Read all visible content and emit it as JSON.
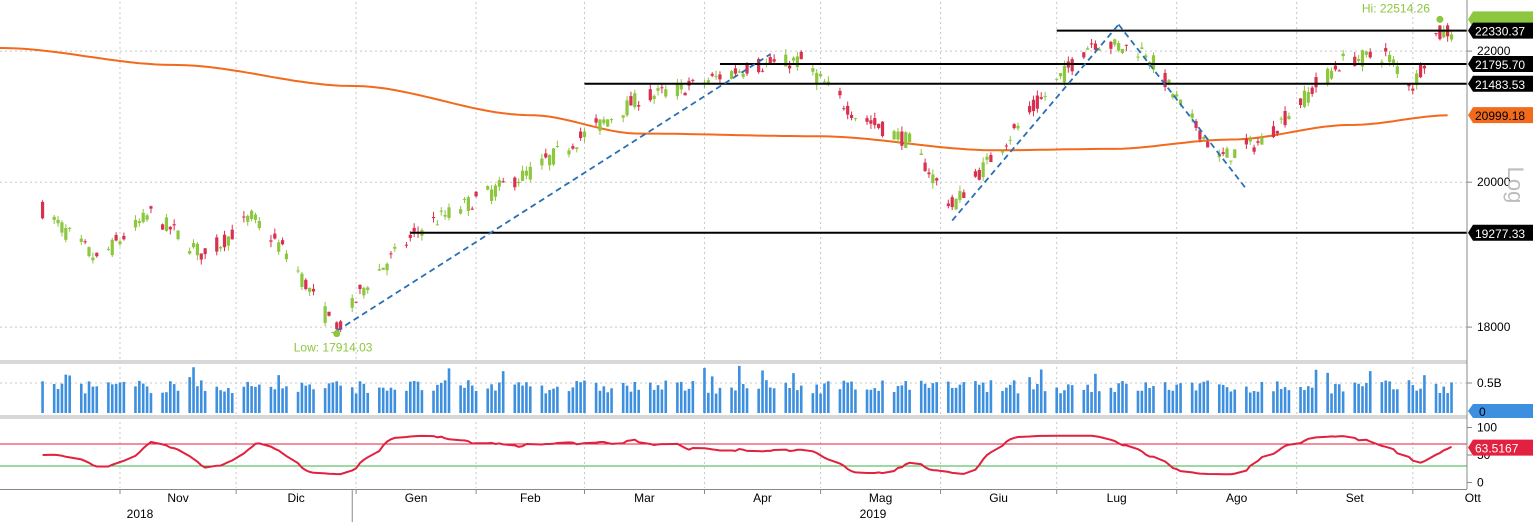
{
  "chart_data": {
    "type": "candlestick",
    "scale": "log",
    "scale_label": "Log",
    "price_ylim": [
      17600,
      22800
    ],
    "price_ticks": [
      18000,
      20000,
      22000
    ],
    "months": [
      "Nov",
      "Dic",
      "Gen",
      "Feb",
      "Mar",
      "Apr",
      "Mag",
      "Giu",
      "Lug",
      "Ago",
      "Set",
      "Ott"
    ],
    "years": [
      "2018",
      "2019"
    ],
    "anchors": [
      {
        "date": "2018-10-12",
        "close": 19600
      },
      {
        "date": "2018-10-26",
        "close": 18900
      },
      {
        "date": "2018-11-09",
        "close": 19550
      },
      {
        "date": "2018-11-23",
        "close": 18950
      },
      {
        "date": "2018-12-05",
        "close": 19500
      },
      {
        "date": "2018-12-14",
        "close": 19000
      },
      {
        "date": "2018-12-21",
        "close": 18400
      },
      {
        "date": "2018-12-27",
        "close": 17950
      },
      {
        "date": "2019-01-04",
        "close": 18600
      },
      {
        "date": "2019-01-18",
        "close": 19350
      },
      {
        "date": "2019-02-01",
        "close": 19750
      },
      {
        "date": "2019-02-15",
        "close": 20150
      },
      {
        "date": "2019-03-01",
        "close": 20700
      },
      {
        "date": "2019-03-15",
        "close": 21250
      },
      {
        "date": "2019-03-29",
        "close": 21450
      },
      {
        "date": "2019-04-12",
        "close": 21750
      },
      {
        "date": "2019-04-26",
        "close": 21850
      },
      {
        "date": "2019-05-10",
        "close": 21000
      },
      {
        "date": "2019-05-24",
        "close": 20600
      },
      {
        "date": "2019-06-04",
        "close": 19650
      },
      {
        "date": "2019-06-14",
        "close": 20350
      },
      {
        "date": "2019-06-28",
        "close": 21300
      },
      {
        "date": "2019-07-10",
        "close": 22150
      },
      {
        "date": "2019-07-24",
        "close": 22000
      },
      {
        "date": "2019-08-02",
        "close": 21150
      },
      {
        "date": "2019-08-12",
        "close": 20350
      },
      {
        "date": "2019-08-23",
        "close": 20600
      },
      {
        "date": "2019-09-06",
        "close": 21450
      },
      {
        "date": "2019-09-13",
        "close": 21850
      },
      {
        "date": "2019-09-24",
        "close": 21950
      },
      {
        "date": "2019-10-01",
        "close": 21450
      },
      {
        "date": "2019-10-07",
        "close": 22250
      },
      {
        "date": "2019-10-11",
        "close": 22330
      }
    ],
    "moving_average": [
      {
        "date": "2018-10-01",
        "value": 22050
      },
      {
        "date": "2018-11-15",
        "value": 21780
      },
      {
        "date": "2018-12-31",
        "value": 21450
      },
      {
        "date": "2019-02-15",
        "value": 21000
      },
      {
        "date": "2019-03-15",
        "value": 20720
      },
      {
        "date": "2019-04-30",
        "value": 20680
      },
      {
        "date": "2019-06-15",
        "value": 20470
      },
      {
        "date": "2019-07-15",
        "value": 20490
      },
      {
        "date": "2019-08-15",
        "value": 20630
      },
      {
        "date": "2019-09-15",
        "value": 20850
      },
      {
        "date": "2019-10-11",
        "value": 20999.18
      }
    ],
    "horizontal_levels": [
      {
        "value": 22330.37,
        "label": "22330.37",
        "from": "2019-07-01"
      },
      {
        "value": 21795.7,
        "label": "21795.70",
        "from": "2019-04-05"
      },
      {
        "value": 21795.7,
        "label": "21795.70",
        "from": "2019-09-03"
      },
      {
        "value": 21483.53,
        "label": "21483.53",
        "from": "2019-03-01"
      },
      {
        "value": 19277.33,
        "label": "19277.33",
        "from": "2019-01-15"
      }
    ],
    "trendlines": [
      {
        "from": {
          "date": "2018-12-27",
          "value": 17950
        },
        "to": {
          "date": "2019-04-18",
          "value": 21950
        }
      },
      {
        "from": {
          "date": "2019-06-04",
          "value": 19450
        },
        "to": {
          "date": "2019-07-17",
          "value": 22430
        }
      },
      {
        "from": {
          "date": "2019-07-17",
          "value": 22430
        },
        "to": {
          "date": "2019-08-19",
          "value": 19900
        }
      }
    ],
    "last_price": {
      "value": 22514.26,
      "label": ""
    },
    "ma_label": "20999.18",
    "high": {
      "date": "2019-10-08",
      "value": 22514.26,
      "label": "Hi: 22514.26"
    },
    "low": {
      "date": "2018-12-27",
      "value": 17914.03,
      "label": "Low: 17914.03"
    },
    "volume": {
      "ylim": [
        0,
        0.8
      ],
      "ticks": [
        {
          "value": 0.5,
          "label": "0.5B"
        }
      ],
      "last_label": "0",
      "typical": 0.45
    },
    "rsi": {
      "ylim": [
        -10,
        110
      ],
      "ticks": [
        {
          "value": 0,
          "label": "0"
        },
        {
          "value": 50,
          "label": "50"
        },
        {
          "value": 100,
          "label": "100"
        }
      ],
      "overbought": 70,
      "oversold": 30,
      "last_value": 63.5167,
      "last_label": "63.5167"
    }
  },
  "colors": {
    "up": "#8dc63f",
    "down": "#d9304f",
    "ma": "#f26a1b",
    "volume": "#3d8fe0",
    "rsi": "#e2203f",
    "overbought": "#e2203f",
    "oversold": "#3ab54a",
    "trend": "#2a6fb5",
    "level": "#000000",
    "grid": "#c8c8c8",
    "hi": "#8dc63f",
    "low": "#8dc63f"
  }
}
